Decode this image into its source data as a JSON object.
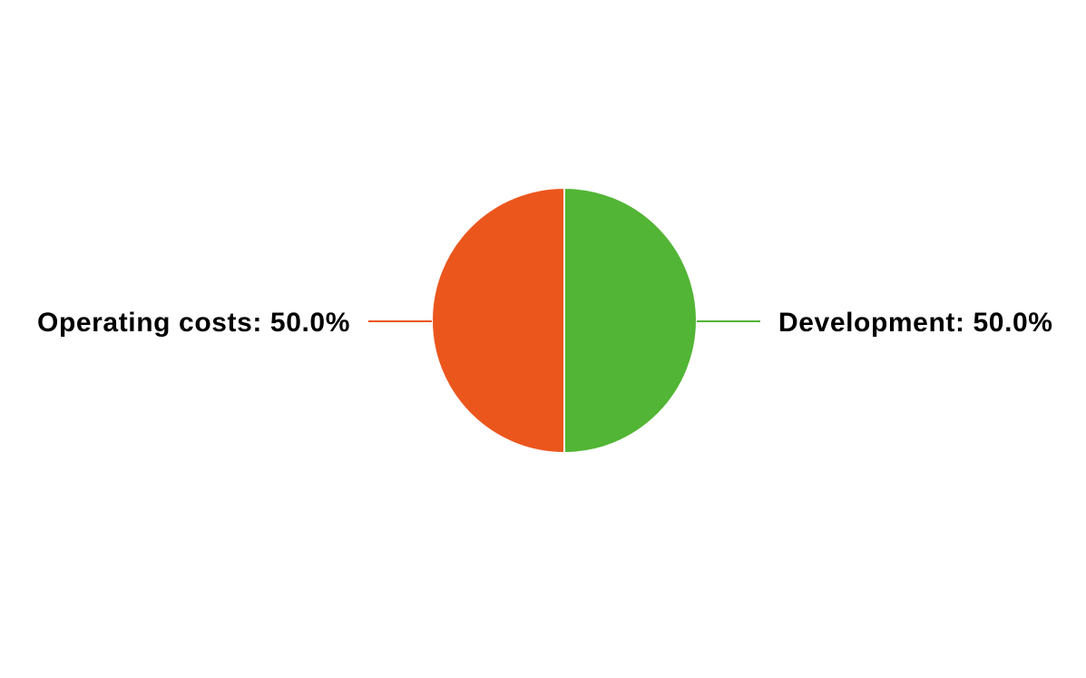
{
  "chart_data": {
    "type": "pie",
    "slices": [
      {
        "label": "Development",
        "value": 50.0,
        "display": "Development: 50.0%",
        "color": "#52b535"
      },
      {
        "label": "Operating costs",
        "value": 50.0,
        "display": "Operating costs: 50.0%",
        "color": "#eb561d"
      }
    ],
    "legend": "none"
  }
}
